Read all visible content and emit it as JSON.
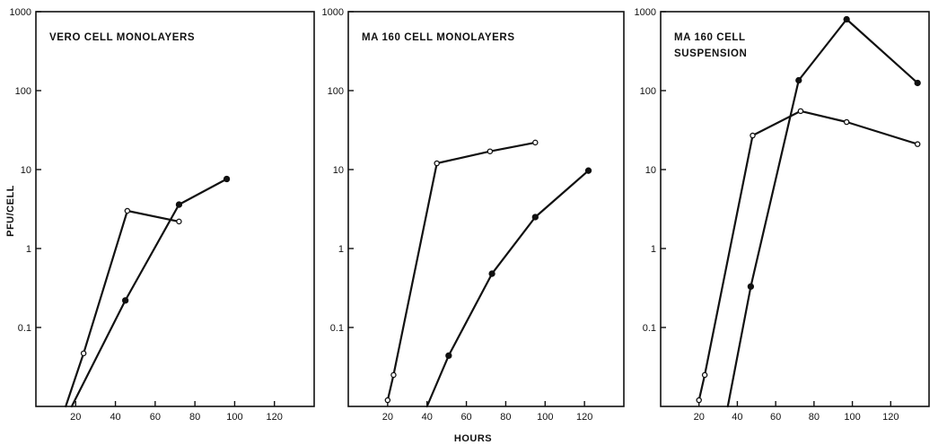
{
  "chart_data": {
    "ylabel": "PFU/CELL",
    "xlabel": "HOURS",
    "panels": [
      {
        "type": "line",
        "title_lines": [
          "VERO CELL MONOLAYERS"
        ],
        "xlim": [
          0,
          140
        ],
        "ylim": [
          0.01,
          1000
        ],
        "y_scale": "log",
        "x_ticks": [
          20,
          40,
          60,
          80,
          100,
          120
        ],
        "y_ticks": [
          0.1,
          1,
          10,
          100,
          1000
        ],
        "y_tick_labels": [
          "0.1",
          "1",
          "10",
          "100",
          "1000"
        ],
        "series": [
          {
            "marker": "open",
            "x": [
              15,
              24,
              46,
              72
            ],
            "y": [
              0.01,
              0.047,
              3.0,
              2.2
            ]
          },
          {
            "marker": "filled",
            "x": [
              18,
              45,
              72,
              96
            ],
            "y": [
              0.01,
              0.22,
              3.6,
              7.6
            ]
          }
        ]
      },
      {
        "type": "line",
        "title_lines": [
          "MA 160 CELL MONOLAYERS"
        ],
        "xlim": [
          0,
          140
        ],
        "ylim": [
          0.01,
          1000
        ],
        "y_scale": "log",
        "x_ticks": [
          20,
          40,
          60,
          80,
          100,
          120
        ],
        "y_ticks": [
          0.1,
          1,
          10,
          100,
          1000
        ],
        "y_tick_labels": [
          "0.1",
          "1",
          "10",
          "100",
          "1000"
        ],
        "series": [
          {
            "marker": "open",
            "x": [
              20,
              23,
              45,
              72,
              95
            ],
            "y": [
              0.012,
              0.025,
              12,
              17,
              22
            ]
          },
          {
            "marker": "filled",
            "x": [
              40,
              51,
              73,
              95,
              122
            ],
            "y": [
              0.01,
              0.044,
              0.48,
              2.5,
              9.7
            ]
          }
        ]
      },
      {
        "type": "line",
        "title_lines": [
          "MA 160 CELL",
          "SUSPENSION"
        ],
        "xlim": [
          0,
          140
        ],
        "ylim": [
          0.01,
          1000
        ],
        "y_scale": "log",
        "x_ticks": [
          20,
          40,
          60,
          80,
          100,
          120
        ],
        "y_ticks": [
          0.1,
          1,
          10,
          100,
          1000
        ],
        "y_tick_labels": [
          "0.1",
          "1",
          "10",
          "100",
          "1000"
        ],
        "series": [
          {
            "marker": "open",
            "x": [
              20,
              23,
              48,
              73,
              97,
              134
            ],
            "y": [
              0.012,
              0.025,
              27,
              55,
              40,
              21
            ]
          },
          {
            "marker": "filled",
            "x": [
              35,
              47,
              72,
              97,
              134
            ],
            "y": [
              0.01,
              0.33,
              135,
              800,
              125
            ]
          }
        ]
      }
    ]
  }
}
